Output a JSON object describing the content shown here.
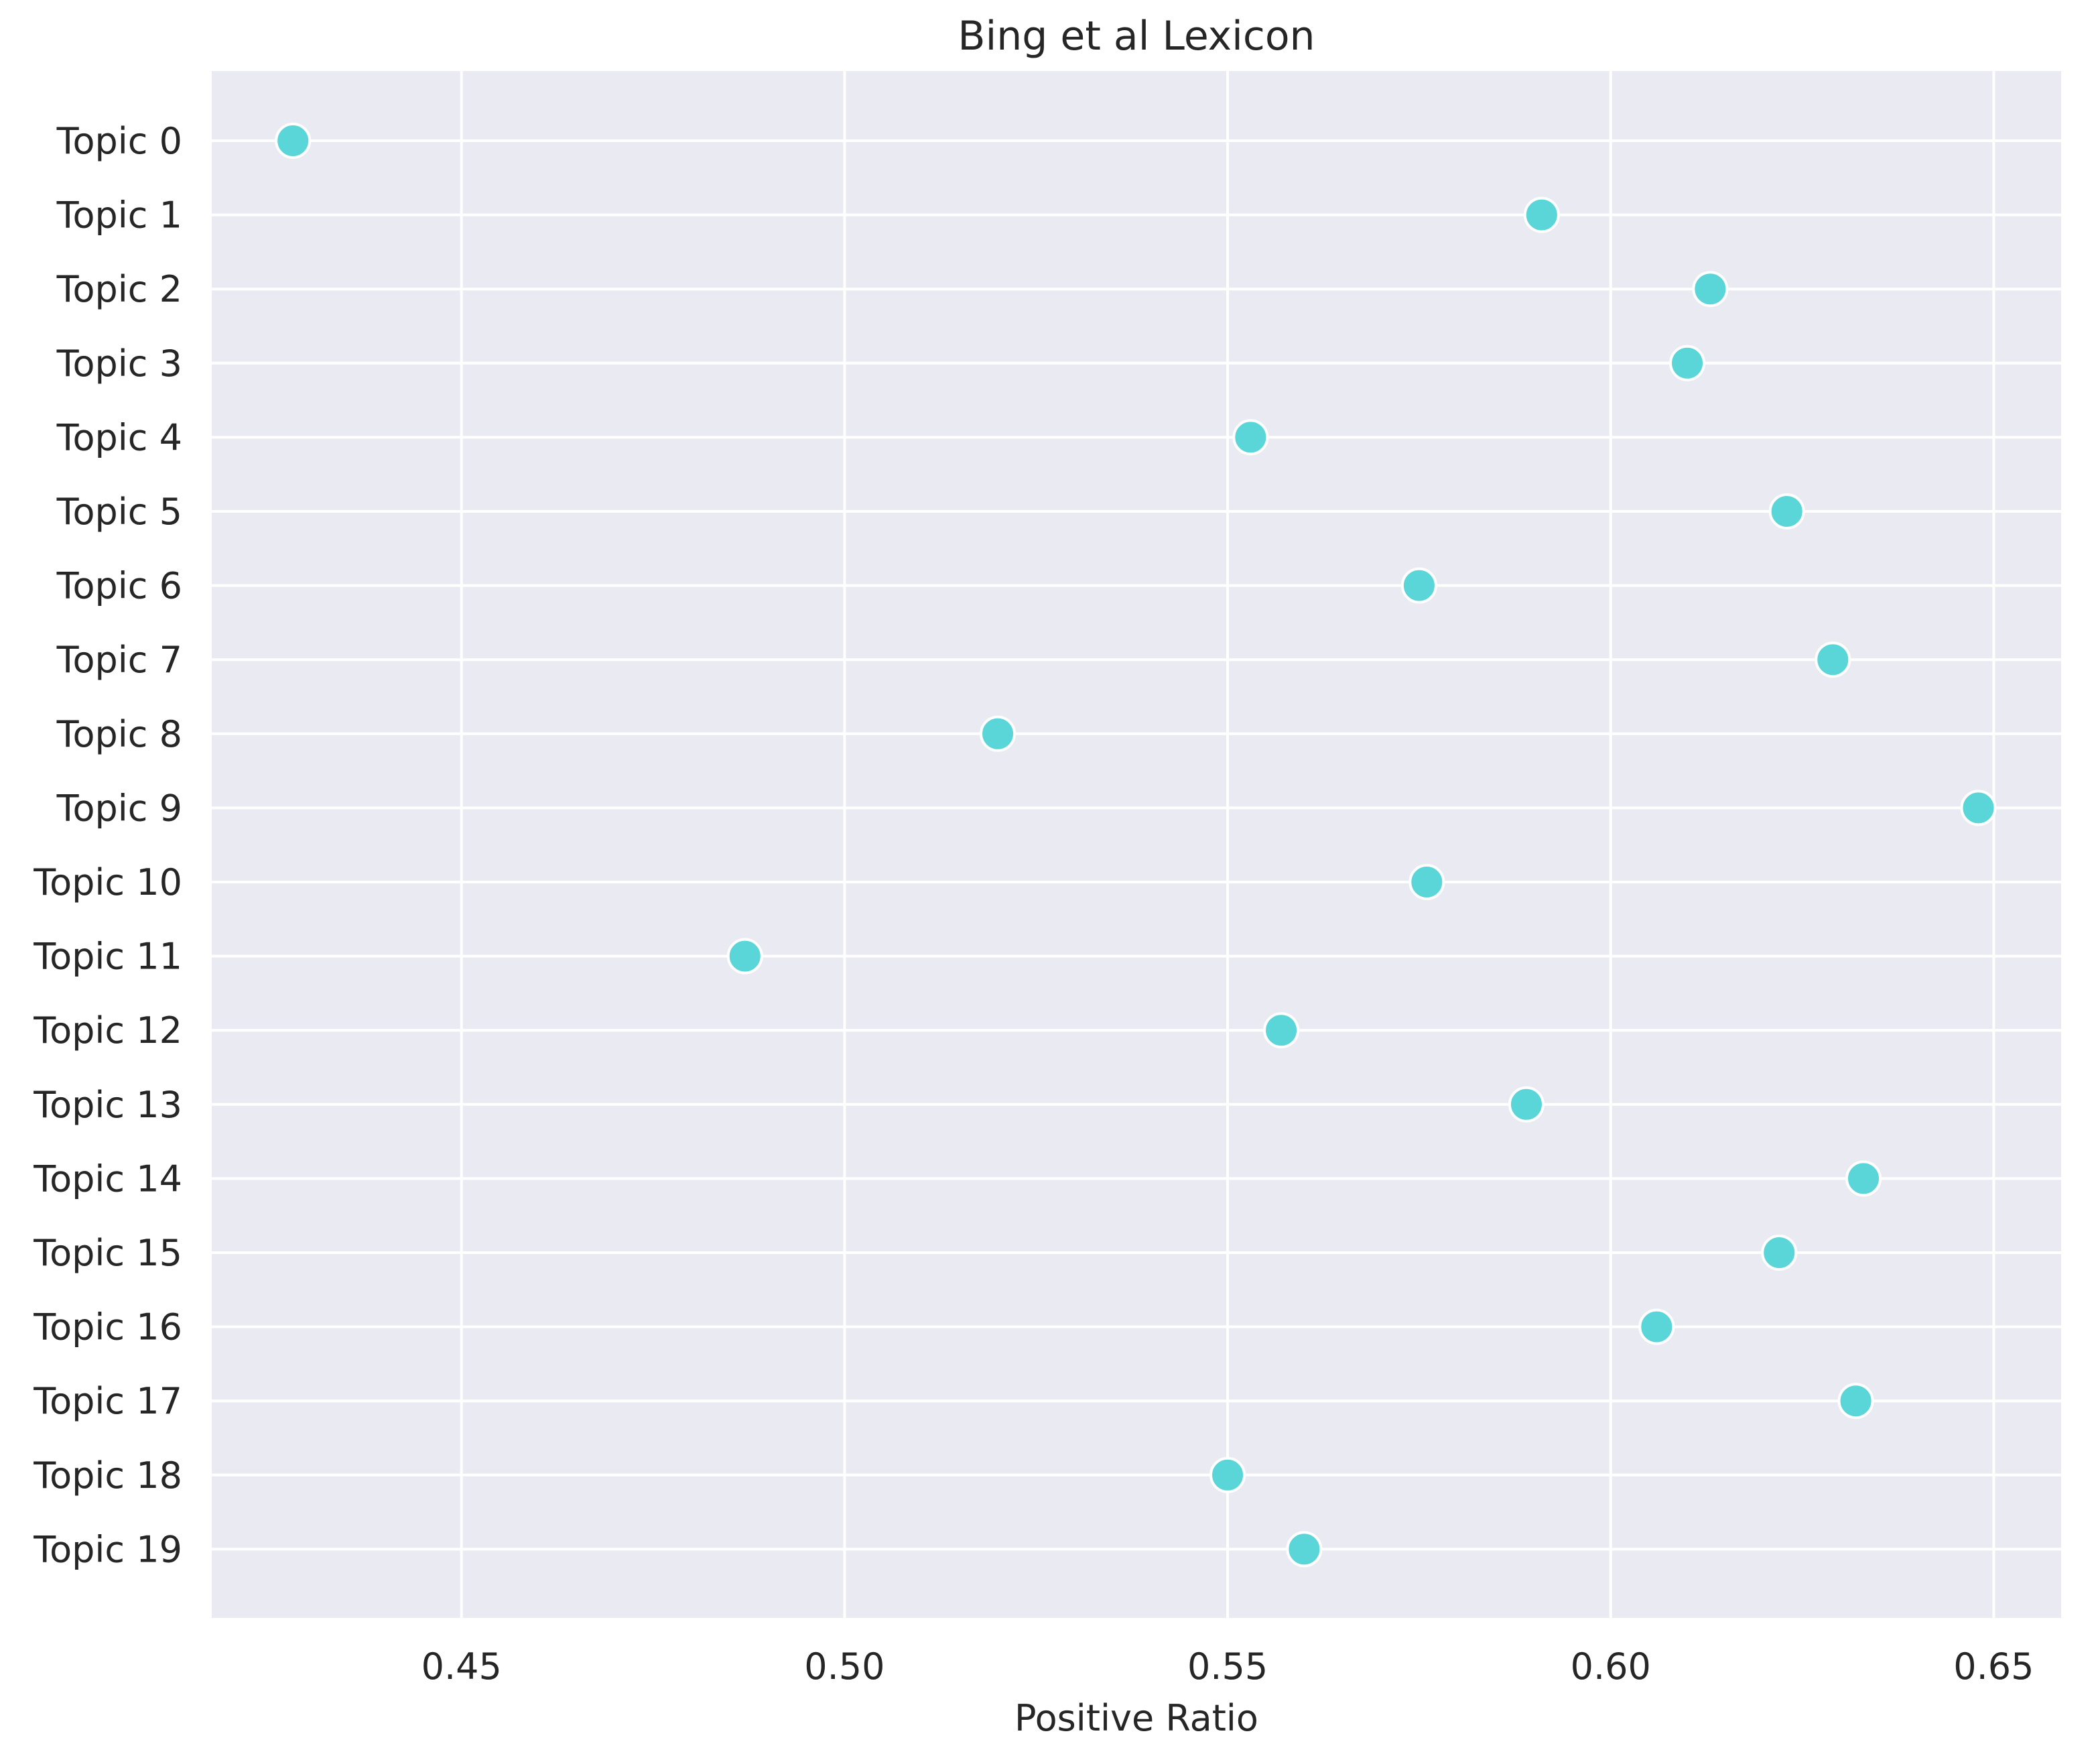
{
  "chart_data": {
    "type": "scatter",
    "title": "Bing et al Lexicon",
    "xlabel": "Positive Ratio",
    "ylabel": "",
    "xlim": [
      0.4174,
      0.6588
    ],
    "xticks": [
      "0.45",
      "0.50",
      "0.55",
      "0.60",
      "0.65"
    ],
    "xtick_values": [
      0.45,
      0.5,
      0.55,
      0.6,
      0.65
    ],
    "categories": [
      "Topic 0",
      "Topic 1",
      "Topic 2",
      "Topic 3",
      "Topic 4",
      "Topic 5",
      "Topic 6",
      "Topic 7",
      "Topic 8",
      "Topic 9",
      "Topic 10",
      "Topic 11",
      "Topic 12",
      "Topic 13",
      "Topic 14",
      "Topic 15",
      "Topic 16",
      "Topic 17",
      "Topic 18",
      "Topic 19"
    ],
    "values": [
      0.428,
      0.591,
      0.613,
      0.61,
      0.553,
      0.623,
      0.575,
      0.629,
      0.52,
      0.648,
      0.576,
      0.487,
      0.557,
      0.589,
      0.633,
      0.622,
      0.606,
      0.632,
      0.55,
      0.56
    ],
    "grid": true,
    "legend": "none",
    "colors": {
      "background": "#eaeaf2",
      "grid": "#ffffff",
      "marker": "#5ad5d8",
      "marker_edge": "#ffffff",
      "text": "#262626"
    }
  }
}
